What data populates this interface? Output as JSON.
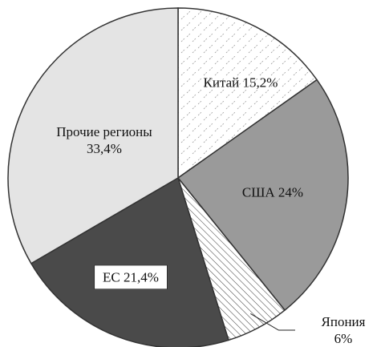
{
  "chart_data": {
    "type": "pie",
    "categories": [
      "Китай",
      "США",
      "Япония",
      "ЕС",
      "Прочие регионы"
    ],
    "values": [
      15.2,
      24,
      6,
      21.4,
      33.4
    ],
    "value_labels": [
      "15,2%",
      "24%",
      "6%",
      "21,4%",
      "33,4%"
    ],
    "colors": [
      "#ffffff",
      "#9a9a9a",
      "#ffffff",
      "#4a4a4a",
      "#e4e4e4"
    ],
    "patterns": [
      "dashes",
      "none",
      "hatch",
      "none",
      "none"
    ]
  }
}
